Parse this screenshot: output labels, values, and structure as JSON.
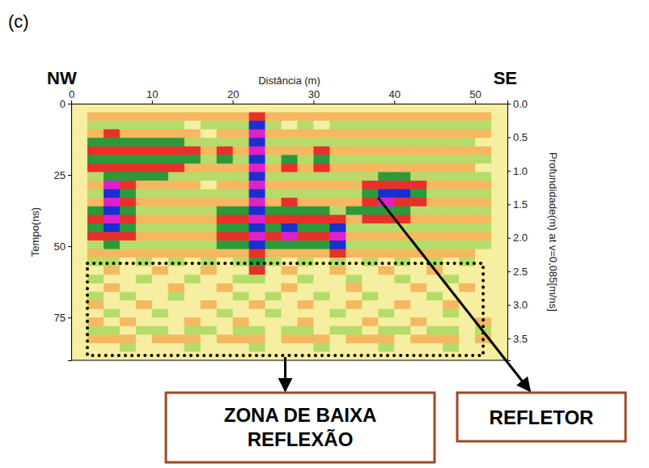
{
  "chart_data": {
    "type": "heatmap",
    "panel_label": "(c)",
    "directions": [
      "NW",
      "SE"
    ],
    "x_label": "Distância (m)",
    "y_label": "Tempo(ns)",
    "y2_label": "Profundidade(m) at v=0,085[m/ns]",
    "xlim": [
      0,
      54
    ],
    "xticks": [
      0,
      10,
      20,
      30,
      40,
      50
    ],
    "ylim": [
      0,
      90
    ],
    "yticks": [
      0,
      25,
      50,
      75
    ],
    "y2lim": [
      0,
      3.825
    ],
    "y2ticks": [
      {
        "value": 0,
        "label": "0.0"
      },
      0.5,
      {
        "value": 1,
        "label": "1.0"
      },
      1.5,
      {
        "value": 2,
        "label": "2.0"
      },
      2.5,
      {
        "value": 3,
        "label": "3.0"
      },
      3.5
    ],
    "zlim": [
      -3,
      3
    ],
    "x": [
      0,
      2,
      4,
      6,
      8,
      10,
      12,
      14,
      16,
      18,
      20,
      22,
      24,
      26,
      28,
      30,
      32,
      34,
      36,
      38,
      40,
      42,
      44,
      46,
      48,
      50,
      52
    ],
    "y": [
      0,
      3,
      6,
      9,
      12,
      15,
      18,
      21,
      24,
      27,
      30,
      33,
      36,
      39,
      42,
      45,
      48,
      51,
      54,
      57,
      60,
      63,
      66,
      69,
      72,
      75,
      78,
      81,
      84,
      87
    ],
    "cells": [
      [
        0,
        0,
        0,
        0,
        0,
        0,
        0,
        0,
        0,
        0,
        0,
        0,
        0,
        0,
        0,
        0,
        0,
        0,
        0,
        0,
        0,
        0,
        0,
        0,
        0,
        0,
        0
      ],
      [
        0,
        1,
        1,
        1,
        1,
        1,
        1,
        1,
        1,
        1,
        1,
        2,
        1,
        1,
        1,
        1,
        1,
        1,
        1,
        1,
        1,
        1,
        1,
        1,
        1,
        1,
        0
      ],
      [
        0,
        -1,
        -1,
        -1,
        -1,
        -1,
        -1,
        0,
        -1,
        -1,
        -1,
        -3,
        -1,
        0,
        -1,
        0,
        -1,
        -1,
        -1,
        -1,
        -1,
        -1,
        -1,
        -1,
        -1,
        -1,
        0
      ],
      [
        0,
        1,
        2,
        1,
        1,
        1,
        1,
        1,
        0,
        1,
        1,
        3,
        1,
        1,
        1,
        1,
        1,
        1,
        1,
        1,
        1,
        1,
        1,
        1,
        1,
        1,
        0
      ],
      [
        0,
        -2,
        -2,
        -2,
        -2,
        -2,
        -2,
        -1,
        -1,
        -1,
        -1,
        -3,
        -1,
        -1,
        -1,
        -1,
        -1,
        -1,
        -1,
        -1,
        -1,
        -1,
        -1,
        -1,
        -1,
        0,
        0
      ],
      [
        0,
        2,
        2,
        2,
        2,
        2,
        2,
        2,
        1,
        2,
        1,
        3,
        1,
        1,
        1,
        2,
        1,
        1,
        1,
        1,
        1,
        1,
        1,
        1,
        1,
        1,
        0
      ],
      [
        0,
        -2,
        -2,
        -2,
        -2,
        -2,
        -2,
        -2,
        -1,
        -2,
        -1,
        -3,
        -1,
        -2,
        -1,
        -2,
        -1,
        -1,
        -1,
        -1,
        -1,
        -1,
        -1,
        -1,
        -1,
        -1,
        0
      ],
      [
        0,
        2,
        2,
        2,
        2,
        2,
        2,
        1,
        1,
        1,
        1,
        3,
        1,
        2,
        1,
        2,
        1,
        1,
        1,
        1,
        1,
        1,
        1,
        1,
        1,
        0,
        0
      ],
      [
        0,
        -1,
        -2,
        -2,
        -2,
        -2,
        -1,
        -1,
        -1,
        -1,
        -1,
        -3,
        -1,
        -1,
        -1,
        -1,
        -1,
        -1,
        -1,
        -2,
        -2,
        -1,
        -1,
        -1,
        -1,
        -1,
        0
      ],
      [
        0,
        1,
        3,
        2,
        1,
        1,
        1,
        1,
        0,
        1,
        1,
        3,
        1,
        1,
        1,
        1,
        1,
        1,
        2,
        2,
        2,
        2,
        1,
        1,
        1,
        1,
        0
      ],
      [
        0,
        -1,
        -3,
        -2,
        -1,
        -1,
        -1,
        -1,
        -1,
        -1,
        -1,
        -3,
        -1,
        -1,
        -1,
        -1,
        -1,
        -1,
        -2,
        -3,
        -3,
        -2,
        -1,
        -1,
        -1,
        -1,
        0
      ],
      [
        0,
        1,
        3,
        2,
        1,
        1,
        1,
        1,
        1,
        1,
        1,
        3,
        1,
        2,
        1,
        1,
        1,
        1,
        2,
        3,
        2,
        2,
        1,
        1,
        1,
        1,
        0
      ],
      [
        0,
        -2,
        -3,
        -2,
        -1,
        -1,
        -1,
        -1,
        -1,
        -2,
        -2,
        -3,
        -2,
        -2,
        -2,
        -2,
        -1,
        -2,
        -2,
        -2,
        -2,
        -1,
        -1,
        -1,
        -1,
        -1,
        0
      ],
      [
        0,
        2,
        3,
        2,
        1,
        1,
        1,
        1,
        1,
        2,
        2,
        3,
        2,
        2,
        2,
        2,
        2,
        1,
        2,
        2,
        2,
        1,
        1,
        1,
        1,
        1,
        0
      ],
      [
        0,
        -2,
        -3,
        -2,
        -1,
        -1,
        -1,
        -1,
        -1,
        -2,
        -2,
        -3,
        -2,
        -3,
        -2,
        -2,
        -3,
        -1,
        -1,
        -1,
        -1,
        -1,
        -1,
        -1,
        -1,
        -1,
        0
      ],
      [
        0,
        2,
        2,
        2,
        1,
        1,
        1,
        1,
        1,
        2,
        2,
        3,
        2,
        3,
        2,
        2,
        3,
        1,
        1,
        1,
        1,
        1,
        1,
        1,
        1,
        1,
        0
      ],
      [
        0,
        -1,
        -2,
        -1,
        -1,
        -1,
        -1,
        -1,
        -1,
        -2,
        -2,
        -3,
        -2,
        -2,
        -2,
        -2,
        -3,
        -1,
        -1,
        -1,
        -1,
        -1,
        -1,
        -1,
        -1,
        -1,
        0
      ],
      [
        0,
        1,
        1,
        1,
        1,
        1,
        1,
        1,
        1,
        1,
        1,
        2,
        1,
        1,
        1,
        1,
        2,
        1,
        1,
        1,
        1,
        1,
        1,
        1,
        1,
        0,
        0
      ],
      [
        0,
        -1,
        -1,
        0,
        -1,
        0,
        -1,
        0,
        -1,
        0,
        -1,
        -2,
        -1,
        0,
        -1,
        0,
        -1,
        0,
        -1,
        0,
        -1,
        0,
        -1,
        0,
        -1,
        0,
        0
      ],
      [
        0,
        0,
        1,
        0,
        0,
        1,
        0,
        0,
        1,
        0,
        0,
        2,
        0,
        1,
        0,
        0,
        1,
        0,
        0,
        1,
        0,
        0,
        1,
        0,
        0,
        0,
        0
      ],
      [
        0,
        -1,
        0,
        0,
        -1,
        0,
        0,
        -1,
        0,
        0,
        -1,
        -1,
        0,
        0,
        -1,
        0,
        0,
        -1,
        0,
        0,
        -1,
        0,
        0,
        -1,
        0,
        0,
        0
      ],
      [
        0,
        0,
        1,
        0,
        0,
        0,
        1,
        0,
        0,
        1,
        0,
        0,
        0,
        1,
        0,
        0,
        0,
        1,
        0,
        0,
        0,
        1,
        0,
        0,
        1,
        0,
        0
      ],
      [
        0,
        -1,
        0,
        -1,
        0,
        0,
        -1,
        0,
        0,
        0,
        -1,
        0,
        -1,
        0,
        0,
        -1,
        0,
        0,
        -1,
        0,
        0,
        0,
        -1,
        0,
        0,
        0,
        0
      ],
      [
        0,
        1,
        0,
        0,
        1,
        0,
        0,
        0,
        1,
        0,
        0,
        1,
        0,
        0,
        1,
        0,
        0,
        1,
        0,
        0,
        1,
        0,
        0,
        1,
        0,
        0,
        0
      ],
      [
        0,
        0,
        -1,
        0,
        0,
        -1,
        0,
        0,
        0,
        -1,
        0,
        0,
        -1,
        0,
        0,
        0,
        -1,
        0,
        0,
        -1,
        0,
        0,
        0,
        -1,
        0,
        0,
        0
      ],
      [
        0,
        1,
        0,
        1,
        0,
        0,
        0,
        1,
        0,
        0,
        1,
        0,
        0,
        0,
        1,
        0,
        0,
        0,
        1,
        0,
        0,
        1,
        0,
        0,
        0,
        1,
        0
      ],
      [
        0,
        -1,
        -1,
        0,
        -1,
        -1,
        0,
        -1,
        -1,
        0,
        -1,
        -1,
        0,
        -1,
        -1,
        0,
        -1,
        -1,
        0,
        -1,
        -1,
        0,
        -1,
        -1,
        0,
        -1,
        0
      ],
      [
        0,
        1,
        1,
        1,
        0,
        1,
        1,
        1,
        0,
        1,
        1,
        1,
        0,
        1,
        1,
        1,
        0,
        1,
        1,
        1,
        0,
        1,
        1,
        1,
        0,
        1,
        0
      ],
      [
        0,
        0,
        0,
        -1,
        0,
        0,
        0,
        -1,
        0,
        0,
        0,
        -1,
        0,
        0,
        0,
        -1,
        0,
        0,
        0,
        -1,
        0,
        0,
        0,
        -1,
        0,
        0,
        0
      ],
      [
        0,
        0,
        0,
        0,
        0,
        0,
        0,
        0,
        0,
        0,
        0,
        0,
        0,
        0,
        0,
        0,
        0,
        0,
        0,
        0,
        0,
        0,
        0,
        0,
        0,
        0,
        0
      ]
    ],
    "annotations": [
      {
        "text": "ZONA DE BAIXA REFLEXÃO",
        "x": [
          2,
          51
        ],
        "y": [
          56,
          90
        ]
      },
      {
        "text": "REFLETOR",
        "x": 38,
        "y": 33
      }
    ]
  }
}
